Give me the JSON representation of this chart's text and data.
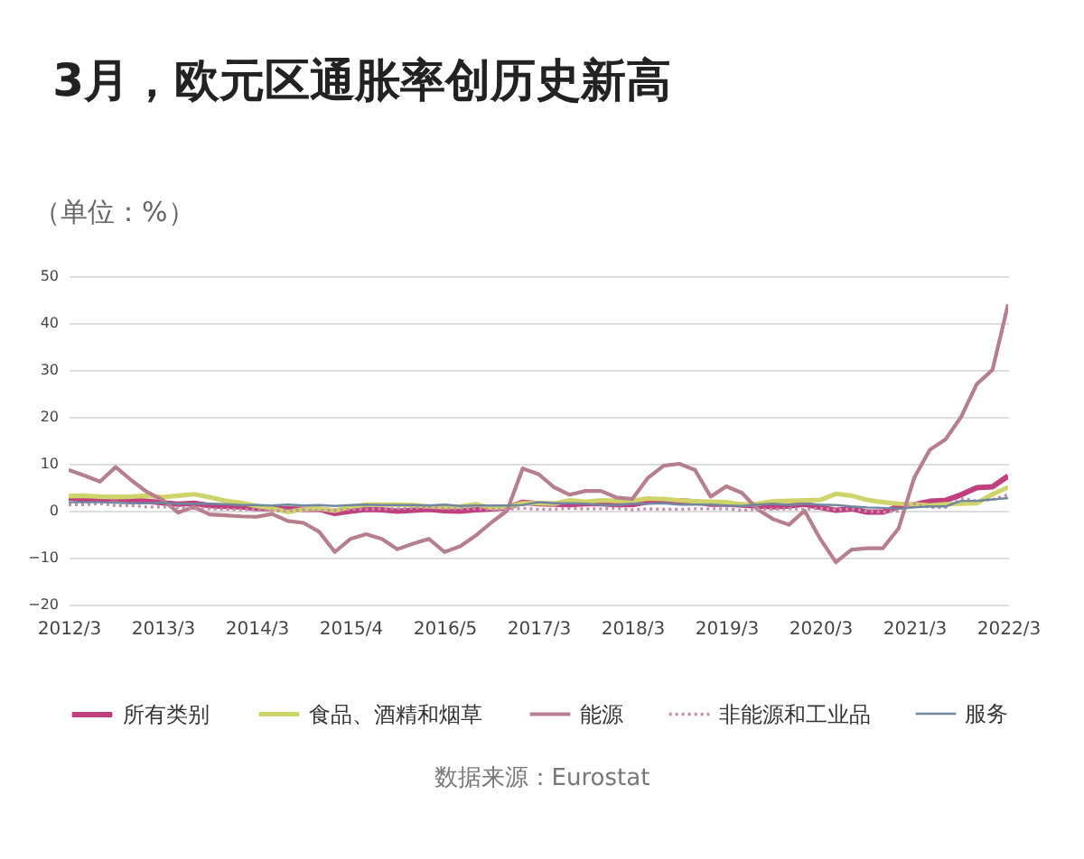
{
  "chart_data": {
    "type": "line",
    "title": "3月，欧元区通胀率创历史新高",
    "ylabel": "（单位：%）",
    "categories": [
      "2012/3",
      null,
      null,
      null,
      null,
      null,
      "2013/3",
      null,
      null,
      null,
      null,
      null,
      "2014/3",
      null,
      null,
      null,
      null,
      null,
      "2015/4",
      null,
      null,
      null,
      null,
      null,
      "2016/5",
      null,
      null,
      null,
      null,
      null,
      "2017/3",
      null,
      null,
      null,
      null,
      null,
      "2018/3",
      null,
      null,
      null,
      null,
      null,
      "2019/3",
      null,
      null,
      null,
      null,
      null,
      "2020/3",
      null,
      null,
      null,
      null,
      null,
      "2021/3",
      null,
      null,
      null,
      null,
      null,
      "2022/3"
    ],
    "series": [
      {
        "name": "所有类别",
        "color": "#c0407f",
        "values": [
          2.7,
          2.4,
          2.4,
          2.6,
          2.2,
          2.0,
          1.7,
          1.4,
          1.6,
          1.1,
          0.9,
          0.8,
          0.5,
          0.5,
          0.4,
          0.3,
          0.3,
          -0.6,
          -0.1,
          0.3,
          0.2,
          -0.1,
          0.1,
          0.3,
          0.0,
          -0.1,
          0.2,
          0.4,
          0.6,
          1.8,
          1.5,
          1.4,
          1.3,
          1.5,
          1.5,
          1.3,
          1.3,
          1.9,
          2.1,
          2.1,
          1.9,
          1.4,
          1.4,
          1.2,
          1.0,
          0.8,
          1.0,
          1.4,
          0.7,
          0.1,
          0.4,
          -0.3,
          -0.3,
          0.9,
          1.3,
          2.0,
          2.2,
          3.4,
          4.9,
          5.1,
          7.4
        ]
      },
      {
        "name": "食品、酒精和烟草",
        "color": "#cfd46a",
        "values": [
          3.1,
          3.2,
          3.0,
          2.9,
          3.0,
          3.2,
          2.9,
          3.2,
          3.5,
          2.9,
          2.1,
          1.7,
          1.0,
          0.5,
          -0.3,
          0.3,
          0.5,
          0.0,
          0.8,
          1.3,
          1.3,
          1.3,
          1.2,
          0.9,
          0.8,
          0.9,
          1.4,
          0.6,
          0.8,
          1.6,
          1.6,
          1.5,
          2.2,
          1.9,
          2.2,
          2.1,
          2.1,
          2.6,
          2.5,
          2.2,
          2.0,
          1.9,
          1.8,
          1.3,
          1.5,
          2.0,
          2.1,
          2.2,
          2.3,
          3.6,
          3.2,
          2.3,
          1.8,
          1.5,
          1.4,
          1.1,
          1.4,
          1.5,
          1.6,
          3.5,
          5.0
        ]
      },
      {
        "name": "能源",
        "color": "#b57f8e",
        "values": [
          8.7,
          7.5,
          6.2,
          9.3,
          6.5,
          4.0,
          2.3,
          -0.4,
          0.8,
          -0.8,
          -1.0,
          -1.2,
          -1.3,
          -0.7,
          -2.2,
          -2.6,
          -4.5,
          -8.8,
          -6.0,
          -5.0,
          -6.0,
          -8.2,
          -7.0,
          -6.0,
          -8.8,
          -7.6,
          -5.3,
          -2.5,
          0.0,
          9.0,
          7.8,
          5.0,
          3.4,
          4.2,
          4.2,
          2.8,
          2.5,
          7.0,
          9.6,
          10.0,
          8.7,
          3.0,
          5.2,
          3.8,
          0.3,
          -1.8,
          -3.0,
          0.0,
          -6.0,
          -11.0,
          -8.3,
          -8.0,
          -8.0,
          -3.8,
          7.0,
          13.0,
          15.2,
          20.0,
          27.0,
          30.0,
          44.0
        ]
      },
      {
        "name": "非能源和工业品",
        "color": "#c490a8",
        "line_style": "dotted",
        "values": [
          1.3,
          1.3,
          1.5,
          1.1,
          1.1,
          0.8,
          0.8,
          0.7,
          0.4,
          0.4,
          0.3,
          0.2,
          0.2,
          0.0,
          0.0,
          0.2,
          0.0,
          0.1,
          0.3,
          0.3,
          0.4,
          0.5,
          0.5,
          0.7,
          0.5,
          0.4,
          0.4,
          0.3,
          0.3,
          0.5,
          0.3,
          0.3,
          0.5,
          0.4,
          0.4,
          0.5,
          0.2,
          0.4,
          0.3,
          0.3,
          0.4,
          0.4,
          0.4,
          0.1,
          0.3,
          0.3,
          0.4,
          0.3,
          0.5,
          0.2,
          0.4,
          -0.1,
          -0.3,
          -0.1,
          1.5,
          0.7,
          0.7,
          2.6,
          2.1,
          2.4,
          3.4
        ]
      },
      {
        "name": "服务",
        "color": "#6f87a0",
        "values": [
          1.8,
          1.8,
          1.8,
          1.7,
          1.6,
          1.6,
          1.7,
          1.5,
          1.5,
          1.5,
          1.4,
          1.2,
          1.2,
          1.1,
          1.3,
          1.1,
          1.2,
          1.0,
          1.2,
          1.3,
          1.2,
          1.2,
          1.2,
          1.1,
          1.3,
          1.0,
          1.1,
          1.1,
          1.1,
          1.2,
          1.8,
          1.6,
          1.6,
          1.5,
          1.2,
          1.2,
          1.5,
          1.5,
          1.6,
          1.3,
          1.3,
          1.3,
          1.1,
          1.0,
          1.3,
          1.5,
          1.2,
          1.5,
          1.3,
          1.2,
          0.9,
          0.7,
          0.6,
          0.4,
          0.7,
          0.9,
          0.9,
          2.1,
          2.1,
          2.4,
          2.7
        ]
      }
    ],
    "ylim": [
      -20,
      50
    ],
    "yticks": [
      -20,
      -10,
      0,
      10,
      20,
      30,
      40,
      50
    ],
    "grid": "y",
    "legend": "bottom",
    "line_style": "solid",
    "marker": "none",
    "annotations": [
      "数据来源：Eurostat"
    ]
  }
}
